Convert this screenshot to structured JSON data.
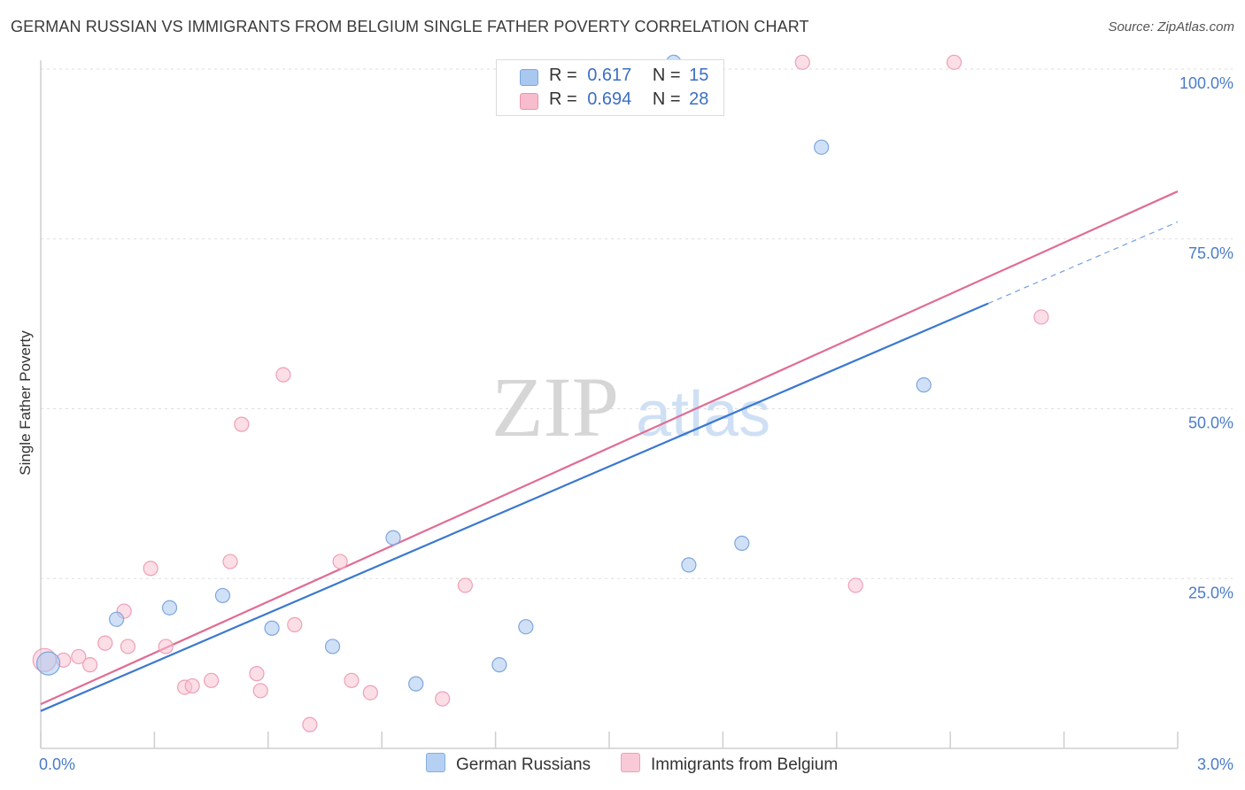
{
  "title": "GERMAN RUSSIAN VS IMMIGRANTS FROM BELGIUM SINGLE FATHER POVERTY CORRELATION CHART",
  "source": "Source: ZipAtlas.com",
  "watermark": {
    "zip": "ZIP",
    "atlas": "atlas"
  },
  "legend": {
    "rows": [
      {
        "r_label": "R =",
        "r_value": "0.617",
        "n_label": "N =",
        "n_value": "15",
        "color": "#a9c8f0",
        "border": "#7da6dc"
      },
      {
        "r_label": "R =",
        "r_value": "0.694",
        "n_label": "N =",
        "n_value": "28",
        "color": "#f7bccd",
        "border": "#ec93ad"
      }
    ]
  },
  "bottom_legend": [
    {
      "label": "German Russians",
      "color": "#b5d0f3",
      "border": "#86aee2"
    },
    {
      "label": "Immigrants from Belgium",
      "color": "#f9c9d7",
      "border": "#ee9fb7"
    }
  ],
  "chart_data": {
    "type": "scatter",
    "ylabel": "Single Father Poverty",
    "xlim": [
      0,
      3.0
    ],
    "ylim": [
      0,
      100
    ],
    "x_tick_labels": [
      {
        "value": 0,
        "label": "0.0%"
      },
      {
        "value": 3.0,
        "label": "3.0%"
      }
    ],
    "y_tick_labels": [
      {
        "value": 25,
        "label": "25.0%"
      },
      {
        "value": 50,
        "label": "50.0%"
      },
      {
        "value": 75,
        "label": "75.0%"
      },
      {
        "value": 100,
        "label": "100.0%"
      }
    ],
    "grid": true,
    "series": [
      {
        "name": "German Russians",
        "color": "#a9c8f0",
        "edge": "#7da6dc",
        "line_color": "#3a78d0",
        "points": [
          [
            0.02,
            12.5
          ],
          [
            0.2,
            19
          ],
          [
            0.34,
            20.7
          ],
          [
            0.48,
            22.5
          ],
          [
            0.61,
            17.7
          ],
          [
            0.77,
            15
          ],
          [
            0.93,
            31
          ],
          [
            0.99,
            9.5
          ],
          [
            1.21,
            12.3
          ],
          [
            1.28,
            17.9
          ],
          [
            1.71,
            27
          ],
          [
            1.85,
            30.2
          ],
          [
            1.67,
            101
          ],
          [
            2.06,
            88.5
          ],
          [
            2.33,
            53.5
          ]
        ],
        "trend": {
          "x0": 0,
          "y0": 5.5,
          "x1": 2.5,
          "y1": 65.5,
          "dash_to_x": 3.0,
          "dash_to_y": 77.5
        }
      },
      {
        "name": "Immigrants from Belgium",
        "color": "#f9c2d2",
        "edge": "#ee9fb7",
        "line_color": "#e06c94",
        "points": [
          [
            0.01,
            13.0
          ],
          [
            0.06,
            13.0
          ],
          [
            0.1,
            13.5
          ],
          [
            0.13,
            12.3
          ],
          [
            0.17,
            15.5
          ],
          [
            0.23,
            15
          ],
          [
            0.22,
            20.2
          ],
          [
            0.29,
            26.5
          ],
          [
            0.33,
            15
          ],
          [
            0.38,
            9
          ],
          [
            0.4,
            9.2
          ],
          [
            0.45,
            10
          ],
          [
            0.5,
            27.5
          ],
          [
            0.53,
            47.7
          ],
          [
            0.57,
            11
          ],
          [
            0.58,
            8.5
          ],
          [
            0.64,
            55
          ],
          [
            0.67,
            18.2
          ],
          [
            0.71,
            3.5
          ],
          [
            0.79,
            27.5
          ],
          [
            0.82,
            10
          ],
          [
            0.87,
            8.2
          ],
          [
            1.06,
            7.3
          ],
          [
            1.12,
            24
          ],
          [
            2.01,
            101
          ],
          [
            2.15,
            24
          ],
          [
            2.41,
            101
          ],
          [
            2.64,
            63.5
          ]
        ],
        "trend": {
          "x0": 0,
          "y0": 6.5,
          "x1": 3.0,
          "y1": 82
        }
      }
    ]
  }
}
